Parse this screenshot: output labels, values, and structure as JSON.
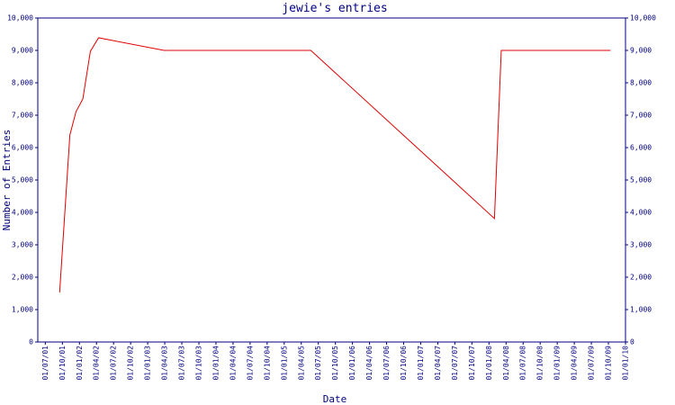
{
  "chart_data": {
    "type": "line",
    "title": "jewie's entries",
    "x_label": "Date",
    "y_label": "Number of Entries",
    "xlim": [
      2001.39,
      2010.0
    ],
    "xticks": [
      {
        "value": 2001.5,
        "label": "01/07/01"
      },
      {
        "value": 2001.75,
        "label": "01/10/01"
      },
      {
        "value": 2002.0,
        "label": "01/01/02"
      },
      {
        "value": 2002.25,
        "label": "01/04/02"
      },
      {
        "value": 2002.5,
        "label": "01/07/02"
      },
      {
        "value": 2002.75,
        "label": "01/10/02"
      },
      {
        "value": 2003.0,
        "label": "01/01/03"
      },
      {
        "value": 2003.25,
        "label": "01/04/03"
      },
      {
        "value": 2003.5,
        "label": "01/07/03"
      },
      {
        "value": 2003.75,
        "label": "01/10/03"
      },
      {
        "value": 2004.0,
        "label": "01/01/04"
      },
      {
        "value": 2004.25,
        "label": "01/04/04"
      },
      {
        "value": 2004.5,
        "label": "01/07/04"
      },
      {
        "value": 2004.75,
        "label": "01/10/04"
      },
      {
        "value": 2005.0,
        "label": "01/01/05"
      },
      {
        "value": 2005.25,
        "label": "01/04/05"
      },
      {
        "value": 2005.5,
        "label": "01/07/05"
      },
      {
        "value": 2005.75,
        "label": "01/10/05"
      },
      {
        "value": 2006.0,
        "label": "01/01/06"
      },
      {
        "value": 2006.25,
        "label": "01/04/06"
      },
      {
        "value": 2006.5,
        "label": "01/07/06"
      },
      {
        "value": 2006.75,
        "label": "01/10/06"
      },
      {
        "value": 2007.0,
        "label": "01/01/07"
      },
      {
        "value": 2007.25,
        "label": "01/04/07"
      },
      {
        "value": 2007.5,
        "label": "01/07/07"
      },
      {
        "value": 2007.75,
        "label": "01/10/07"
      },
      {
        "value": 2008.0,
        "label": "01/01/08"
      },
      {
        "value": 2008.25,
        "label": "01/04/08"
      },
      {
        "value": 2008.5,
        "label": "01/07/08"
      },
      {
        "value": 2008.75,
        "label": "01/10/08"
      },
      {
        "value": 2009.0,
        "label": "01/01/09"
      },
      {
        "value": 2009.25,
        "label": "01/04/09"
      },
      {
        "value": 2009.5,
        "label": "01/07/09"
      },
      {
        "value": 2009.75,
        "label": "01/10/09"
      },
      {
        "value": 2010.0,
        "label": "01/01/10"
      }
    ],
    "ylim": [
      0,
      10000
    ],
    "yticks": [
      0,
      {
        "value": 1000,
        "label": "1,000"
      },
      {
        "value": 2000,
        "label": "2,000"
      },
      {
        "value": 3000,
        "label": "3,000"
      },
      {
        "value": 4000,
        "label": "4,000"
      },
      {
        "value": 5000,
        "label": "5,000"
      },
      {
        "value": 6000,
        "label": "6,000"
      },
      {
        "value": 7000,
        "label": "7,000"
      },
      {
        "value": 8000,
        "label": "8,000"
      },
      {
        "value": 9000,
        "label": "9,000"
      },
      {
        "value": 10000,
        "label": "10,000"
      }
    ],
    "axis_color": "#000080",
    "series": [
      {
        "color": "#e00000",
        "x": [
          2001.71,
          2001.86,
          2001.95,
          2002.05,
          2002.16,
          2002.28,
          2003.24,
          2005.39,
          2008.08,
          2008.18,
          2009.78
        ],
        "values": [
          1530,
          6390,
          7110,
          7500,
          8970,
          9390,
          9000,
          9000,
          3810,
          9000,
          9000
        ]
      }
    ]
  }
}
